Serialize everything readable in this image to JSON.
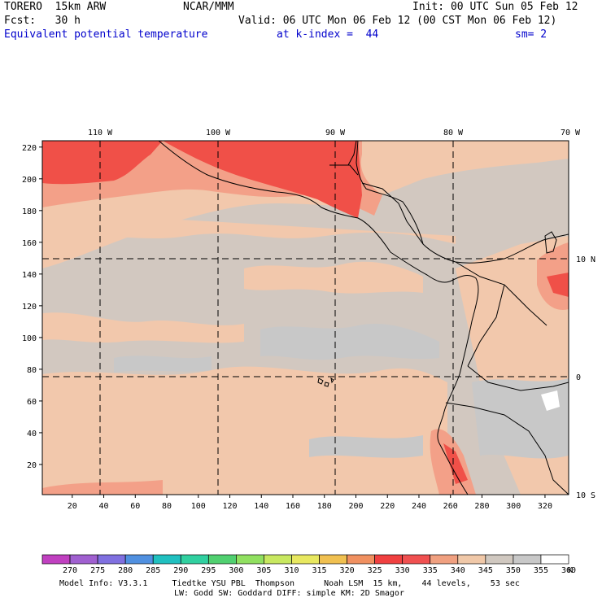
{
  "header": {
    "line1_left": "TORERO  15km ARW",
    "line1_mid": "NCAR/MMM",
    "line1_right": "Init: 00 UTC Sun 05 Feb 12",
    "line2_left": "Fcst:   30 h",
    "line2_right": "Valid: 06 UTC Mon 06 Feb 12 (00 CST Mon 06 Feb 12)",
    "line3_field": "Equivalent potential temperature",
    "line3_level": "at k-index =  44",
    "line3_sm": "sm= 2"
  },
  "map": {
    "lon_labels": [
      "110 W",
      "100 W",
      "90 W",
      "80 W",
      "70 W"
    ],
    "lat_labels": [
      "10 N",
      "0",
      "10 S"
    ],
    "y_ticks": [
      "220",
      "200",
      "180",
      "160",
      "140",
      "120",
      "100",
      "80",
      "60",
      "40",
      "20"
    ],
    "x_ticks": [
      "20",
      "40",
      "60",
      "80",
      "100",
      "120",
      "140",
      "160",
      "180",
      "200",
      "220",
      "240",
      "260",
      "280",
      "300",
      "320"
    ],
    "x_range": [
      1,
      335
    ],
    "y_range": [
      1,
      224
    ]
  },
  "colorbar": {
    "labels": [
      "270",
      "275",
      "280",
      "285",
      "290",
      "295",
      "300",
      "305",
      "310",
      "315",
      "320",
      "325",
      "330",
      "335",
      "340",
      "345",
      "350",
      "355",
      "360"
    ],
    "unit": "K",
    "colors": [
      "#c040c0",
      "#a060d0",
      "#8070e0",
      "#5090e0",
      "#20c0c0",
      "#30d0a0",
      "#50d070",
      "#90e060",
      "#c8e860",
      "#e8e860",
      "#f0c050",
      "#f09060",
      "#f04040",
      "#f05050",
      "#f0a080",
      "#f0c8a8",
      "#d0c8c0",
      "#c8c8c8",
      "#ffffff"
    ]
  },
  "footer": {
    "line1": "Model Info: V3.3.1     Tiedtke YSU PBL  Thompson      Noah LSM  15 km,    44 levels,    53 sec",
    "line2": "LW: Godd SW: Goddard DIFF: simple KM: 2D Smagor"
  }
}
